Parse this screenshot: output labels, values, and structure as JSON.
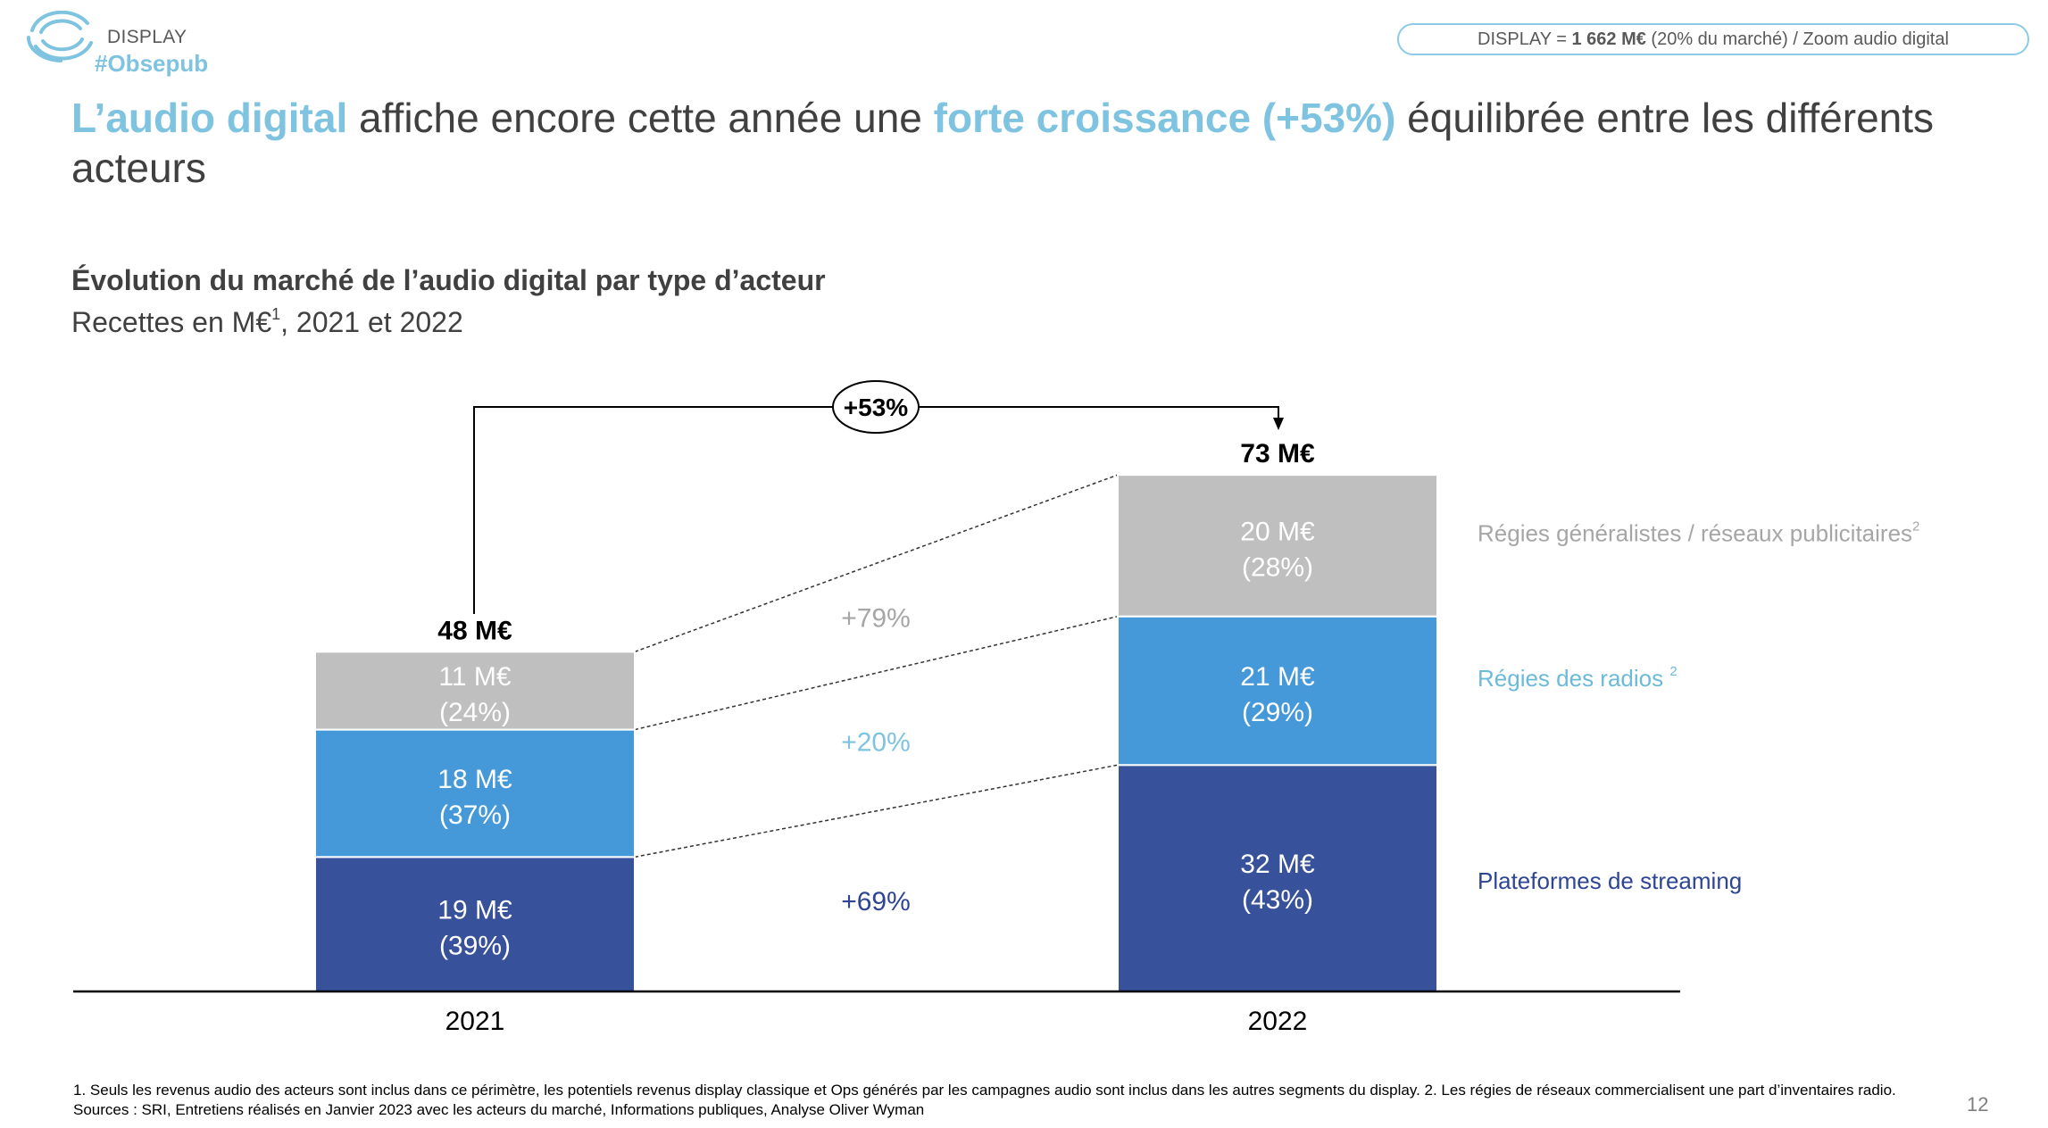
{
  "header": {
    "brand_section": "DISPLAY",
    "brand_tag": "#Obsepub",
    "pill": {
      "prefix": "DISPLAY = ",
      "amount": "1 662 M€",
      "suffix": " (20% du marché) / Zoom audio digital"
    }
  },
  "title": {
    "highlight1": "L’audio digital",
    "text1": " affiche encore cette année une ",
    "highlight2": "forte croissance (+53%)",
    "text2": " équilibrée entre les différents acteurs"
  },
  "chart_header": {
    "title": "Évolution du marché de l’audio digital par type d’acteur",
    "subtitle_prefix": "Recettes en M€",
    "subtitle_sup": "1",
    "subtitle_suffix": ", 2021 et 2022"
  },
  "chart_data": {
    "type": "bar",
    "stacked": true,
    "title": "Évolution du marché de l’audio digital par type d’acteur",
    "subtitle": "Recettes en M€, 2021 et 2022",
    "unit": "M€",
    "categories": [
      "2021",
      "2022"
    ],
    "totals": [
      48,
      73
    ],
    "total_labels": [
      "48 M€",
      "73 M€"
    ],
    "total_growth": "+53%",
    "series": [
      {
        "name": "Plateformes de streaming",
        "sup": "",
        "color": "#37519A",
        "legend_color": "#2E4593",
        "values": [
          19,
          32
        ],
        "value_labels": [
          "19 M€",
          "32 M€"
        ],
        "share_labels": [
          "(39%)",
          "(43%)"
        ],
        "growth": "+69%",
        "growth_color": "#2E4593"
      },
      {
        "name": "Régies des radios ",
        "sup": "2",
        "color": "#4699D9",
        "legend_color": "#6CBAD9",
        "values": [
          18,
          21
        ],
        "value_labels": [
          "18 M€",
          "21 M€"
        ],
        "share_labels": [
          "(37%)",
          "(29%)"
        ],
        "growth": "+20%",
        "growth_color": "#7EC3E0"
      },
      {
        "name": "Régies généralistes / réseaux publicitaires",
        "sup": "2",
        "color": "#BFBFBF",
        "legend_color": "#A6A6A6",
        "values": [
          11,
          20
        ],
        "value_labels": [
          "11 M€",
          "20 M€"
        ],
        "share_labels": [
          "(24%)",
          "(28%)"
        ],
        "growth": "+79%",
        "growth_color": "#A6A6A6"
      }
    ],
    "legend_position": "right",
    "grid": false
  },
  "footnotes": {
    "note1": "1. Seuls les revenus audio des acteurs sont inclus dans ce périmètre, les potentiels revenus display classique et Ops générés par les campagnes audio sont inclus dans les autres segments du display. 2.  Les régies de réseaux commercialisent une part d’inventaires radio.",
    "sources": "Sources : SRI, Entretiens réalisés en Janvier 2023 avec les acteurs du marché, Informations publiques, Analyse Oliver Wyman"
  },
  "page_number": "12"
}
